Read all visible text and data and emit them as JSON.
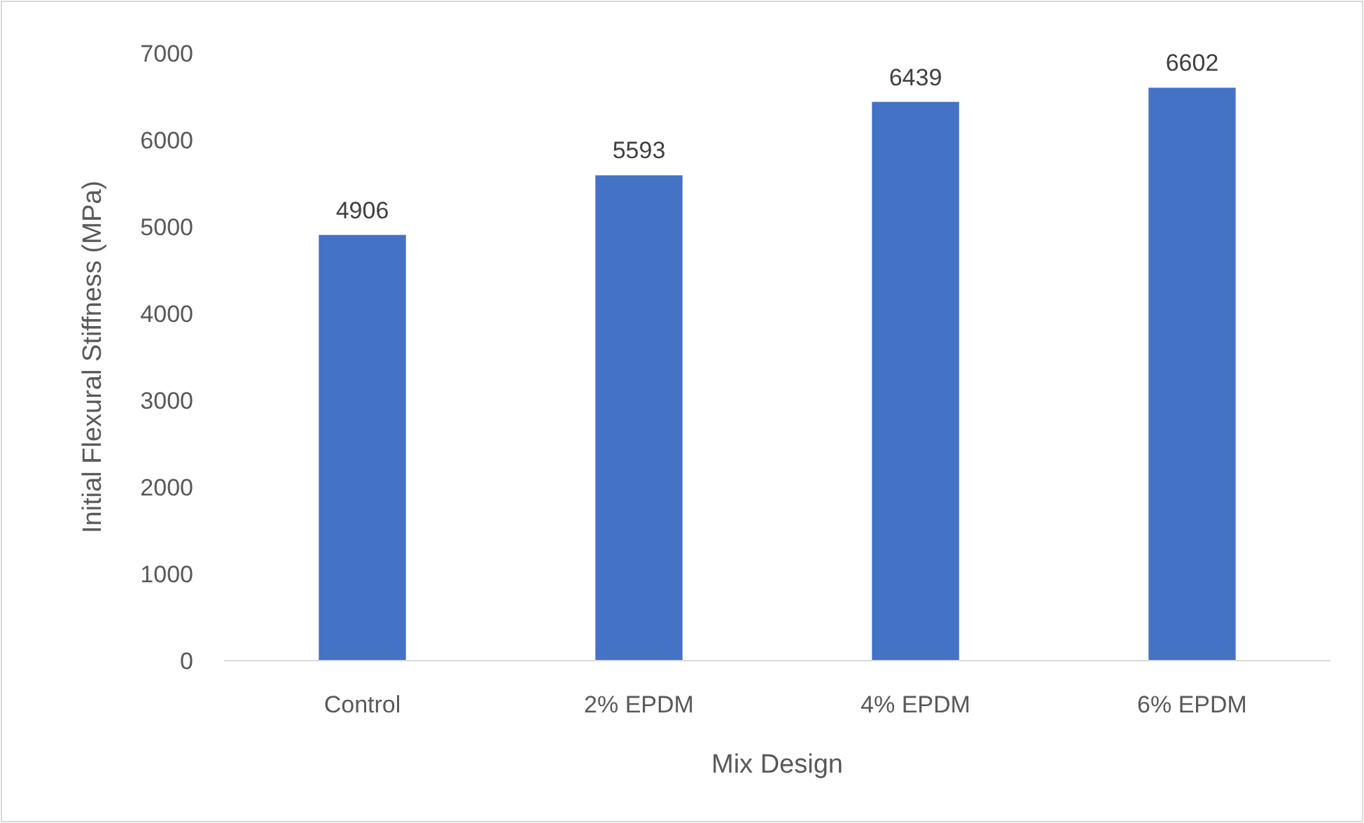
{
  "chart_data": {
    "type": "bar",
    "xlabel": "Mix Design",
    "ylabel": "Initial Flexural Stiffness (MPa)",
    "categories": [
      "Control",
      "2% EPDM",
      "4% EPDM",
      "6% EPDM"
    ],
    "values": [
      4906,
      5593,
      6439,
      6602
    ],
    "color": "#4472c4",
    "ylim": [
      0,
      7000
    ],
    "yticks": [
      0,
      1000,
      2000,
      3000,
      4000,
      5000,
      6000,
      7000
    ],
    "grid": false,
    "data_labels": true
  }
}
